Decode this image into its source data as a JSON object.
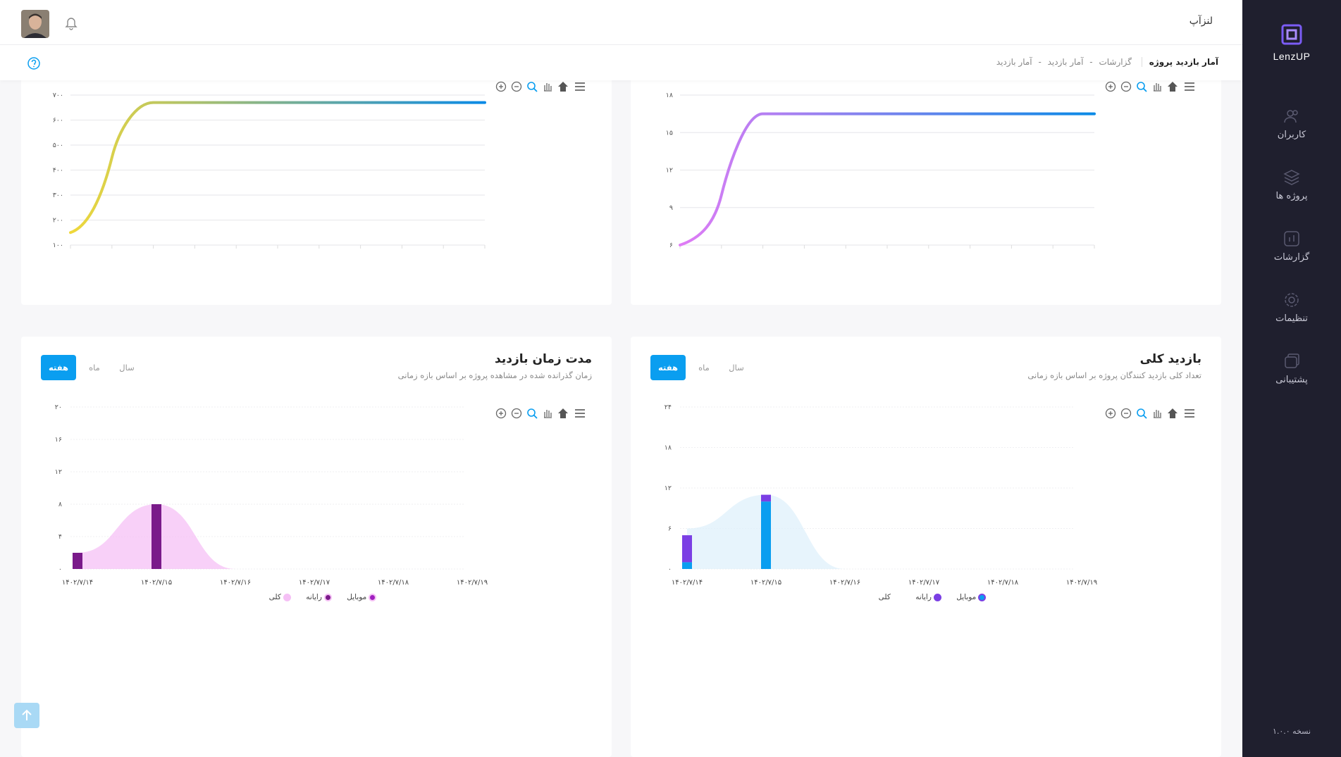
{
  "app": {
    "title": "لنزآپ",
    "logo_text": "LenzUP",
    "version": "نسخه ۱.۰.۰"
  },
  "sidebar": {
    "items": [
      {
        "label": "کاربران",
        "icon": "users-icon"
      },
      {
        "label": "پروژه ها",
        "icon": "layers-icon"
      },
      {
        "label": "گزارشات",
        "icon": "chart-icon"
      },
      {
        "label": "تنظیمات",
        "icon": "gear-icon"
      },
      {
        "label": "پشتیبانی",
        "icon": "support-icon"
      }
    ]
  },
  "breadcrumb": {
    "current": "آمار بازدید پروژه",
    "path": [
      "گزارشات",
      "آمار بازدید",
      "آمار بازدید"
    ],
    "separator": "-"
  },
  "colors": {
    "accent": "#0a9ef0",
    "sidebar": "#1f1f2e"
  },
  "cards": {
    "total_visits": {
      "title": "بازدید کلی",
      "subtitle": "تعداد کلی بازدید کنندگان پروژه بر اساس بازه زمانی",
      "tabs": [
        "سال",
        "ماه",
        "هفته"
      ],
      "active_tab": "هفته"
    },
    "visit_duration": {
      "title": "مدت زمان بازدید",
      "subtitle": "زمان گذرانده شده در مشاهده پروژه بر اساس بازه زمانی",
      "tabs": [
        "سال",
        "ماه",
        "هفته"
      ],
      "active_tab": "هفته"
    }
  },
  "chart_data": [
    {
      "type": "line",
      "y_ticks": [
        "۶",
        "۹",
        "۱۲",
        "۱۵",
        "۱۸"
      ],
      "ylim": [
        6,
        18
      ],
      "points": [
        [
          0,
          6
        ],
        [
          0.1,
          10
        ],
        [
          0.2,
          16.5
        ],
        [
          1,
          16.5
        ]
      ],
      "gradient": [
        "#e07cf5",
        "#0a8ae6"
      ]
    },
    {
      "type": "line",
      "y_ticks": [
        "۱۰۰",
        "۲۰۰",
        "۳۰۰",
        "۴۰۰",
        "۵۰۰",
        "۶۰۰",
        "۷۰۰"
      ],
      "ylim": [
        100,
        700
      ],
      "points": [
        [
          0,
          150
        ],
        [
          0.1,
          450
        ],
        [
          0.2,
          670
        ],
        [
          1,
          670
        ]
      ],
      "gradient": [
        "#f0d83a",
        "#0a8ae6"
      ]
    },
    {
      "type": "bar",
      "y_ticks": [
        "۰",
        "۶",
        "۱۲",
        "۱۸",
        "۲۴"
      ],
      "ylim": [
        0,
        24
      ],
      "categories": [
        "۱۴۰۲/۷/۱۴",
        "۱۴۰۲/۷/۱۵",
        "۱۴۰۲/۷/۱۶",
        "۱۴۰۲/۷/۱۷",
        "۱۴۰۲/۷/۱۸",
        "۱۴۰۲/۷/۱۹"
      ],
      "series": [
        {
          "name": "موبایل",
          "values": [
            1,
            10,
            0,
            0,
            0,
            0
          ],
          "color": "#0a9ef0"
        },
        {
          "name": "رایانه",
          "values": [
            4,
            1,
            0,
            0,
            0,
            0
          ],
          "color": "#7b3fe4"
        },
        {
          "name": "کلی",
          "values": [
            6,
            11,
            0,
            0,
            0,
            0
          ],
          "color": "#dff0fb"
        }
      ]
    },
    {
      "type": "bar",
      "y_ticks": [
        "۰",
        "۴",
        "۸",
        "۱۲",
        "۱۶",
        "۲۰"
      ],
      "ylim": [
        0,
        20
      ],
      "categories": [
        "۱۴۰۲/۷/۱۴",
        "۱۴۰۲/۷/۱۵",
        "۱۴۰۲/۷/۱۶",
        "۱۴۰۲/۷/۱۷",
        "۱۴۰۲/۷/۱۸",
        "۱۴۰۲/۷/۱۹"
      ],
      "series": [
        {
          "name": "موبایل",
          "values": [
            0,
            0,
            0,
            0,
            0,
            0
          ],
          "color": "#a020c0"
        },
        {
          "name": "رایانه",
          "values": [
            2,
            8,
            0,
            0,
            0,
            0
          ],
          "color": "#7a1a8a"
        },
        {
          "name": "کلی",
          "values": [
            2,
            8,
            0,
            0,
            0,
            0
          ],
          "color": "#f5c0f5"
        }
      ]
    }
  ]
}
